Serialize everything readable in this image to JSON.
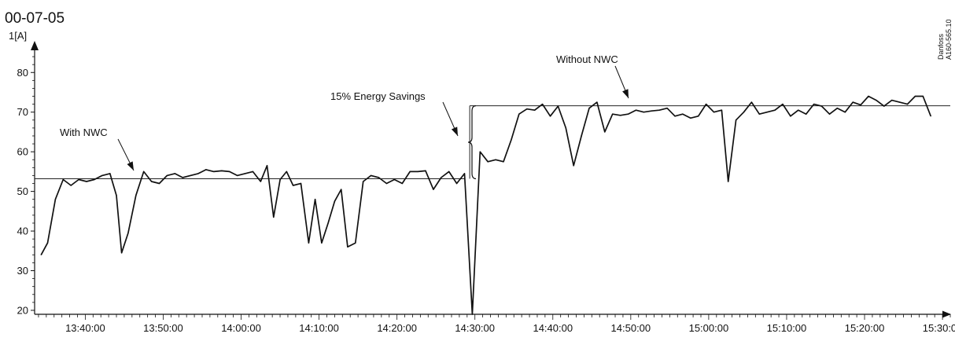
{
  "header": {
    "date": "00-07-05"
  },
  "credit": {
    "line1": "Danfoss",
    "line2": "A160-565.10"
  },
  "chart_data": {
    "type": "line",
    "ylabel": "1[A]",
    "ylim": [
      19,
      86
    ],
    "yticks": [
      20,
      30,
      40,
      50,
      60,
      70,
      80
    ],
    "xlim": [
      "13:33:30",
      "15:31:00"
    ],
    "xticks": [
      "13:40:00",
      "13:50:00",
      "14:00:00",
      "14:10:00",
      "14:20:00",
      "14:30:00",
      "14:40:00",
      "14:50:00",
      "15:00:00",
      "15:10:00",
      "15:20:00",
      "15:30:00"
    ],
    "grid": false,
    "series": [
      {
        "values": [
          [
            "13:34:20",
            34
          ],
          [
            "13:35:10",
            37
          ],
          [
            "13:36:10",
            48
          ],
          [
            "13:37:10",
            53
          ],
          [
            "13:38:10",
            51.5
          ],
          [
            "13:39:10",
            53
          ],
          [
            "13:40:10",
            52.5
          ],
          [
            "13:41:10",
            53
          ],
          [
            "13:42:10",
            54
          ],
          [
            "13:43:10",
            54.5
          ],
          [
            "13:44:00",
            49
          ],
          [
            "13:44:40",
            34.5
          ],
          [
            "13:45:30",
            39.5
          ],
          [
            "13:46:30",
            49
          ],
          [
            "13:47:30",
            55
          ],
          [
            "13:48:30",
            52.5
          ],
          [
            "13:49:30",
            52
          ],
          [
            "13:50:30",
            54
          ],
          [
            "13:51:30",
            54.5
          ],
          [
            "13:52:30",
            53.5
          ],
          [
            "13:53:30",
            54
          ],
          [
            "13:54:30",
            54.5
          ],
          [
            "13:55:30",
            55.5
          ],
          [
            "13:56:30",
            55
          ],
          [
            "13:57:30",
            55.2
          ],
          [
            "13:58:30",
            55
          ],
          [
            "13:59:30",
            54
          ],
          [
            "14:00:30",
            54.5
          ],
          [
            "14:01:30",
            55
          ],
          [
            "14:02:30",
            52.5
          ],
          [
            "14:03:20",
            56.5
          ],
          [
            "14:04:10",
            43.5
          ],
          [
            "14:05:00",
            53
          ],
          [
            "14:05:50",
            55
          ],
          [
            "14:06:40",
            51.5
          ],
          [
            "14:07:40",
            52
          ],
          [
            "14:08:40",
            37
          ],
          [
            "14:09:30",
            48
          ],
          [
            "14:10:20",
            37
          ],
          [
            "14:11:10",
            42
          ],
          [
            "14:12:00",
            47.5
          ],
          [
            "14:12:50",
            50.5
          ],
          [
            "14:13:40",
            36
          ],
          [
            "14:14:40",
            37
          ],
          [
            "14:15:40",
            52.5
          ],
          [
            "14:16:40",
            54
          ],
          [
            "14:17:40",
            53.5
          ],
          [
            "14:18:40",
            52
          ],
          [
            "14:19:40",
            53
          ],
          [
            "14:20:40",
            52
          ],
          [
            "14:21:40",
            55
          ],
          [
            "14:22:40",
            55
          ],
          [
            "14:23:40",
            55.2
          ],
          [
            "14:24:40",
            50.5
          ],
          [
            "14:25:40",
            53.5
          ],
          [
            "14:26:40",
            55
          ],
          [
            "14:27:40",
            52
          ],
          [
            "14:28:40",
            54.5
          ],
          [
            "14:29:40",
            19
          ],
          [
            "14:30:40",
            60
          ],
          [
            "14:31:40",
            57.5
          ],
          [
            "14:32:40",
            58
          ],
          [
            "14:33:40",
            57.5
          ],
          [
            "14:34:40",
            63
          ],
          [
            "14:35:40",
            69.5
          ],
          [
            "14:36:40",
            70.8
          ],
          [
            "14:37:40",
            70.5
          ],
          [
            "14:38:40",
            72
          ],
          [
            "14:39:40",
            69
          ],
          [
            "14:40:40",
            71.5
          ],
          [
            "14:41:40",
            66
          ],
          [
            "14:42:40",
            56.5
          ],
          [
            "14:43:40",
            64
          ],
          [
            "14:44:40",
            71
          ],
          [
            "14:45:40",
            72.5
          ],
          [
            "14:46:40",
            65
          ],
          [
            "14:47:40",
            69.5
          ],
          [
            "14:48:40",
            69.2
          ],
          [
            "14:49:40",
            69.5
          ],
          [
            "14:50:40",
            70.5
          ],
          [
            "14:51:40",
            70
          ],
          [
            "14:52:40",
            70.3
          ],
          [
            "14:53:40",
            70.5
          ],
          [
            "14:54:40",
            71
          ],
          [
            "14:55:40",
            69
          ],
          [
            "14:56:40",
            69.5
          ],
          [
            "14:57:40",
            68.5
          ],
          [
            "14:58:40",
            69
          ],
          [
            "14:59:40",
            72
          ],
          [
            "15:00:40",
            70
          ],
          [
            "15:01:40",
            70.5
          ],
          [
            "15:02:30",
            52.5
          ],
          [
            "15:03:30",
            68
          ],
          [
            "15:04:30",
            70
          ],
          [
            "15:05:30",
            72.5
          ],
          [
            "15:06:30",
            69.5
          ],
          [
            "15:07:30",
            70
          ],
          [
            "15:08:30",
            70.5
          ],
          [
            "15:09:30",
            72
          ],
          [
            "15:10:30",
            69
          ],
          [
            "15:11:30",
            70.5
          ],
          [
            "15:12:30",
            69.5
          ],
          [
            "15:13:30",
            72
          ],
          [
            "15:14:30",
            71.5
          ],
          [
            "15:15:30",
            69.5
          ],
          [
            "15:16:30",
            71
          ],
          [
            "15:17:30",
            70
          ],
          [
            "15:18:30",
            72.5
          ],
          [
            "15:19:30",
            71.8
          ],
          [
            "15:20:30",
            74
          ],
          [
            "15:21:30",
            73
          ],
          [
            "15:22:30",
            71.5
          ],
          [
            "15:23:30",
            73
          ],
          [
            "15:24:30",
            72.5
          ],
          [
            "15:25:30",
            72
          ],
          [
            "15:26:30",
            74
          ],
          [
            "15:27:30",
            74
          ],
          [
            "15:28:30",
            69
          ]
        ]
      }
    ],
    "reference_lines": [
      {
        "y": 53.2,
        "from": "13:33:30",
        "to": "14:28:40"
      },
      {
        "y": 71.6,
        "from": "14:29:20",
        "to": "15:31:00"
      }
    ],
    "annotations": [
      {
        "text": "With NWC",
        "target": "with_nwc_line"
      },
      {
        "text": "Without NWC",
        "target": "without_nwc_line"
      },
      {
        "text": "15% Energy Savings",
        "target": "savings_brace"
      }
    ]
  }
}
